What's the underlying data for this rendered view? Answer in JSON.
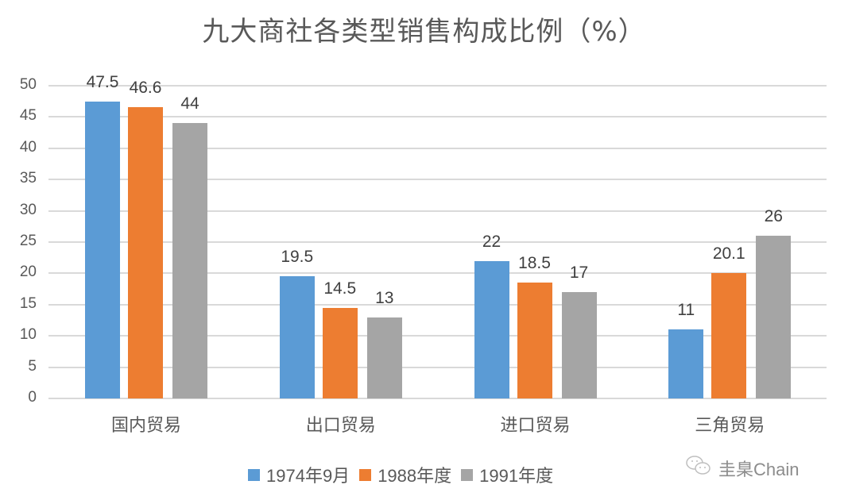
{
  "chart_data": {
    "type": "bar",
    "title": "九大商社各类型销售构成比例（%）",
    "xlabel": "",
    "ylabel": "",
    "ylim": [
      0,
      50
    ],
    "yticks": [
      0,
      5,
      10,
      15,
      20,
      25,
      30,
      35,
      40,
      45,
      50
    ],
    "grid": true,
    "legend_position": "bottom",
    "categories": [
      "国内贸易",
      "出口贸易",
      "进口贸易",
      "三角贸易"
    ],
    "series": [
      {
        "name": "1974年9月",
        "color": "#5b9bd5",
        "values": [
          47.5,
          19.5,
          22,
          11
        ]
      },
      {
        "name": "1988年度",
        "color": "#ed7d31",
        "values": [
          46.6,
          14.5,
          18.5,
          20.1
        ]
      },
      {
        "name": "1991年度",
        "color": "#a5a5a5",
        "values": [
          44,
          13,
          17,
          26
        ]
      }
    ],
    "data_labels": [
      [
        "47.5",
        "19.5",
        "22",
        "11"
      ],
      [
        "46.6",
        "14.5",
        "18.5",
        "20.1"
      ],
      [
        "44",
        "13",
        "17",
        "26"
      ]
    ]
  },
  "watermark": {
    "icon": "wechat-icon",
    "text": "圭臬Chain"
  }
}
